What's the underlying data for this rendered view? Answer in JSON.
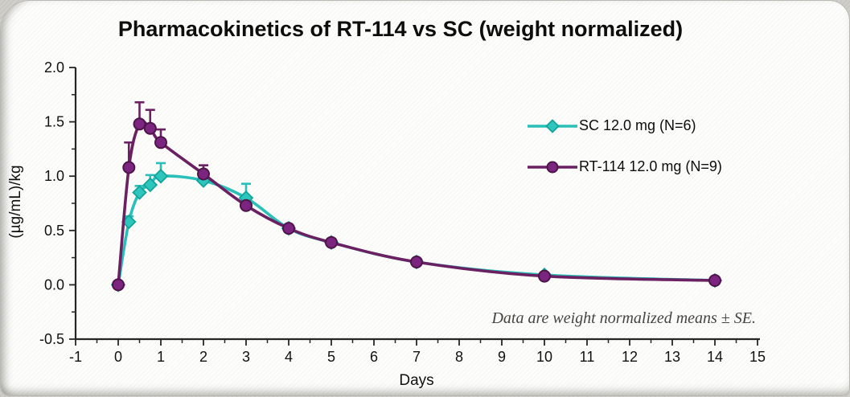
{
  "chart_data": {
    "type": "line",
    "title": "Pharmacokinetics of RT-114 vs SC (weight normalized)",
    "xlabel": "Days",
    "ylabel": "(µg/mL)/kg",
    "annotation": "Data are weight normalized means ± SE.",
    "xlim": [
      -1,
      15
    ],
    "ylim": [
      -0.5,
      2.0
    ],
    "x_ticks": [
      -1,
      0,
      1,
      2,
      3,
      4,
      5,
      6,
      7,
      8,
      9,
      10,
      11,
      12,
      13,
      14,
      15
    ],
    "y_ticks": [
      -0.5,
      0.0,
      0.5,
      1.0,
      1.5,
      2.0
    ],
    "x_minor_step": 0.5,
    "y_minor_step": 0.25,
    "grid": false,
    "legend_position": "inside upper right",
    "error_bars": "upward +SE only, with caps",
    "axis_color": "#262626",
    "x": [
      0,
      0.25,
      0.5,
      0.75,
      1,
      2,
      3,
      4,
      5,
      7,
      10,
      14
    ],
    "series": [
      {
        "name": "SC 12.0 mg (N=6)",
        "marker": "diamond",
        "color": "#2abfb8",
        "marker_fill": "#2cc6bd",
        "marker_edge": "#12a39b",
        "values": [
          0.0,
          0.58,
          0.85,
          0.92,
          1.0,
          0.96,
          0.8,
          0.52,
          0.39,
          0.21,
          0.09,
          0.04
        ],
        "se": [
          0,
          0.05,
          0.06,
          0.09,
          0.12,
          0.02,
          0.13,
          0.02,
          0.01,
          0.01,
          0.01,
          0.0
        ]
      },
      {
        "name": "RT-114 12.0 mg (N=9)",
        "marker": "circle",
        "color": "#6b2061",
        "marker_fill": "#7c2580",
        "marker_edge": "#4e1549",
        "values": [
          0.0,
          1.08,
          1.48,
          1.44,
          1.31,
          1.02,
          0.73,
          0.52,
          0.39,
          0.21,
          0.08,
          0.04
        ],
        "se": [
          0,
          0.23,
          0.2,
          0.17,
          0.12,
          0.08,
          0.02,
          0.02,
          0.01,
          0.01,
          0.0,
          0.0
        ]
      }
    ]
  }
}
